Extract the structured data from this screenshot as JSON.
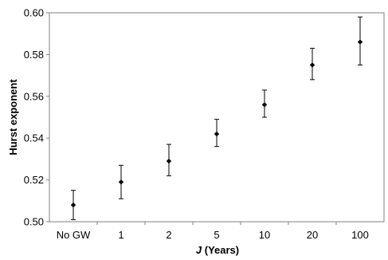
{
  "chart_data": {
    "type": "scatter",
    "title": "",
    "xlabel": {
      "italic_part": "J",
      "rest": " (Years)"
    },
    "ylabel": "Hurst exponent",
    "categories": [
      "No GW",
      "1",
      "2",
      "5",
      "10",
      "20",
      "100"
    ],
    "values": [
      0.508,
      0.519,
      0.529,
      0.542,
      0.556,
      0.575,
      0.586
    ],
    "error_low": [
      0.501,
      0.511,
      0.522,
      0.536,
      0.55,
      0.568,
      0.575
    ],
    "error_high": [
      0.515,
      0.527,
      0.537,
      0.549,
      0.563,
      0.583,
      0.598
    ],
    "ylim": [
      0.5,
      0.6
    ],
    "yticks": [
      "0.50",
      "0.52",
      "0.54",
      "0.56",
      "0.58",
      "0.60"
    ],
    "ytick_values": [
      0.5,
      0.52,
      0.54,
      0.56,
      0.58,
      0.6
    ],
    "grid": false,
    "legend": "none",
    "colors": {
      "marker": "#000000",
      "axis": "#808080",
      "background": "#ffffff"
    }
  }
}
